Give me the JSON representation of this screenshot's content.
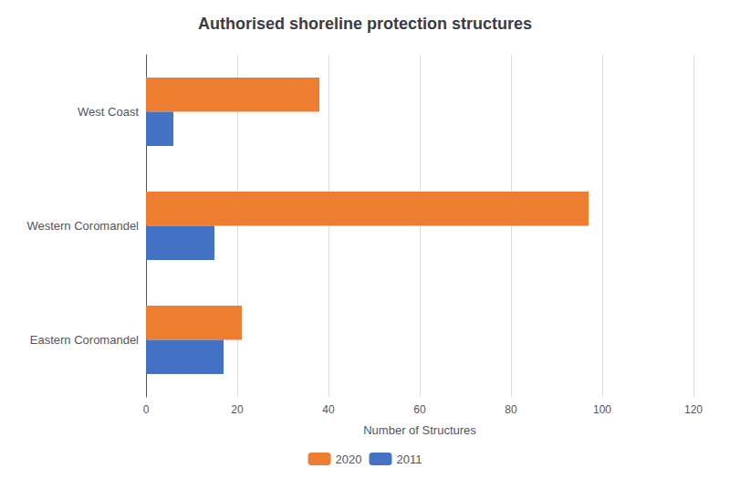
{
  "chart_data": {
    "type": "bar",
    "orientation": "horizontal",
    "title": "Authorised shoreline protection structures",
    "categories": [
      "West Coast",
      "Western Coromandel",
      "Eastern Coromandel"
    ],
    "series": [
      {
        "name": "2020",
        "color": "#ED7D31",
        "values": [
          38,
          97,
          21
        ]
      },
      {
        "name": "2011",
        "color": "#4472C4",
        "values": [
          6,
          15,
          17
        ]
      }
    ],
    "xlabel": "Number of Structures",
    "xlim": [
      0,
      120
    ],
    "xticks": [
      0,
      20,
      40,
      60,
      80,
      100,
      120
    ],
    "grid": true,
    "legend": "bottom"
  }
}
